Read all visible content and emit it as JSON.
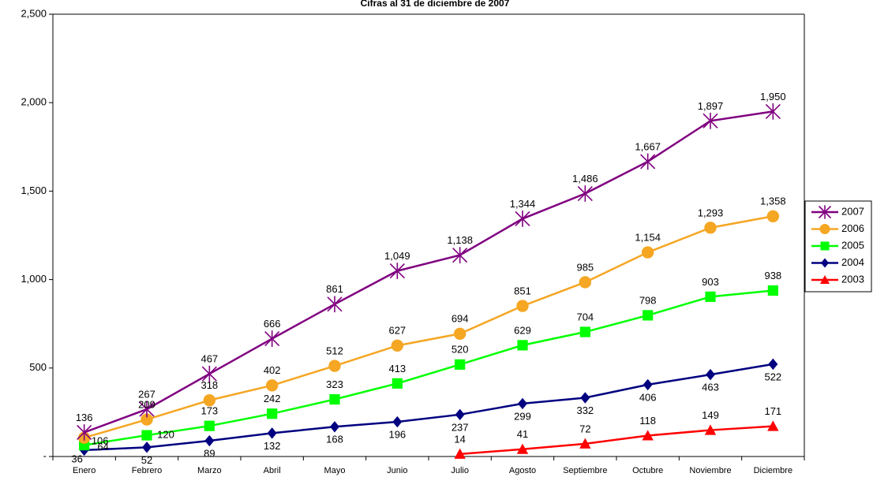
{
  "chart_data": {
    "type": "line",
    "title": "Cifras al 31 de diciembre de 2007",
    "xlabel": "",
    "ylabel": "",
    "ylim": [
      0,
      2500
    ],
    "yticks": [
      0,
      500,
      1000,
      1500,
      2000,
      2500
    ],
    "ytick_labels": [
      "-",
      "500",
      "1,000",
      "1,500",
      "2,000",
      "2,500"
    ],
    "categories": [
      "Enero",
      "Febrero",
      "Marzo",
      "Abril",
      "Mayo",
      "Junio",
      "Julio",
      "Agosto",
      "Septiembre",
      "Octubre",
      "Noviembre",
      "Diciembre"
    ],
    "grid": false,
    "legend": "right",
    "series": [
      {
        "name": "2007",
        "color": "#800080",
        "marker": "asterisk",
        "values": [
          136,
          267,
          467,
          666,
          861,
          1049,
          1138,
          1344,
          1486,
          1667,
          1897,
          1950
        ],
        "labels": [
          "136",
          "267",
          "467",
          "666",
          "861",
          "1,049",
          "1,138",
          "1,344",
          "1,486",
          "1,667",
          "1,897",
          "1,950"
        ]
      },
      {
        "name": "2006",
        "color": "#f5a623",
        "marker": "circle",
        "values": [
          106,
          209,
          318,
          402,
          512,
          627,
          694,
          851,
          985,
          1154,
          1293,
          1358
        ],
        "labels": [
          "106",
          "209",
          "318",
          "402",
          "512",
          "627",
          "694",
          "851",
          "985",
          "1,154",
          "1,293",
          "1,358"
        ]
      },
      {
        "name": "2005",
        "color": "#00ff00",
        "marker": "square",
        "values": [
          64,
          120,
          173,
          242,
          323,
          413,
          520,
          629,
          704,
          798,
          903,
          938
        ],
        "labels": [
          "64",
          "120",
          "173",
          "242",
          "323",
          "413",
          "520",
          "629",
          "704",
          "798",
          "903",
          "938"
        ]
      },
      {
        "name": "2004",
        "color": "#000080",
        "marker": "diamond",
        "values": [
          36,
          52,
          89,
          132,
          168,
          196,
          237,
          299,
          332,
          406,
          463,
          522
        ],
        "labels": [
          "36",
          "52",
          "89",
          "132",
          "168",
          "196",
          "237",
          "299",
          "332",
          "406",
          "463",
          "522"
        ]
      },
      {
        "name": "2003",
        "color": "#ff0000",
        "marker": "triangle",
        "values": [
          null,
          null,
          null,
          null,
          null,
          null,
          14,
          41,
          72,
          118,
          149,
          171
        ],
        "labels": [
          null,
          null,
          null,
          null,
          null,
          null,
          "14",
          "41",
          "72",
          "118",
          "149",
          "171"
        ]
      }
    ]
  }
}
